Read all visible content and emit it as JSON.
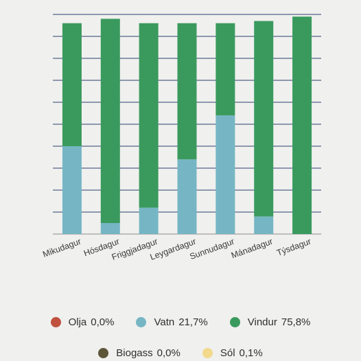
{
  "chart_data": {
    "type": "bar",
    "stacked": true,
    "categories": [
      "Mikudagur",
      "Hósdagur",
      "Friggjadagur",
      "Leygardagur",
      "Sunnudagur",
      "Mánadagur",
      "Týsdagur"
    ],
    "series": [
      {
        "name": "Olja",
        "color": "#c0513f",
        "values": [
          0,
          0,
          0,
          0,
          0,
          0,
          0
        ]
      },
      {
        "name": "Vatn",
        "color": "#76b6c4",
        "values": [
          40,
          5,
          12,
          34,
          54,
          8,
          0
        ]
      },
      {
        "name": "Vindur",
        "color": "#3a9a5e",
        "values": [
          56,
          93,
          84,
          62,
          42,
          89,
          99
        ]
      },
      {
        "name": "Biogass",
        "color": "#5c5538",
        "values": [
          0,
          0,
          0,
          0,
          0,
          0,
          0
        ]
      },
      {
        "name": "Sól",
        "color": "#f3d98c",
        "values": [
          0,
          0,
          0,
          0,
          0,
          0,
          0
        ]
      }
    ],
    "ylim": [
      0,
      100
    ],
    "grid": true,
    "legend_position": "bottom"
  },
  "legend": [
    [
      {
        "name": "Olja",
        "value": "0,0%",
        "color": "#c0513f"
      },
      {
        "name": "Vatn",
        "value": "21,7%",
        "color": "#76b6c4"
      },
      {
        "name": "Vindur",
        "value": "75,8%",
        "color": "#3a9a5e"
      }
    ],
    [
      {
        "name": "Biogass",
        "value": "0,0%",
        "color": "#5c5538"
      },
      {
        "name": "Sól",
        "value": "0,1%",
        "color": "#f3d98c"
      }
    ]
  ]
}
